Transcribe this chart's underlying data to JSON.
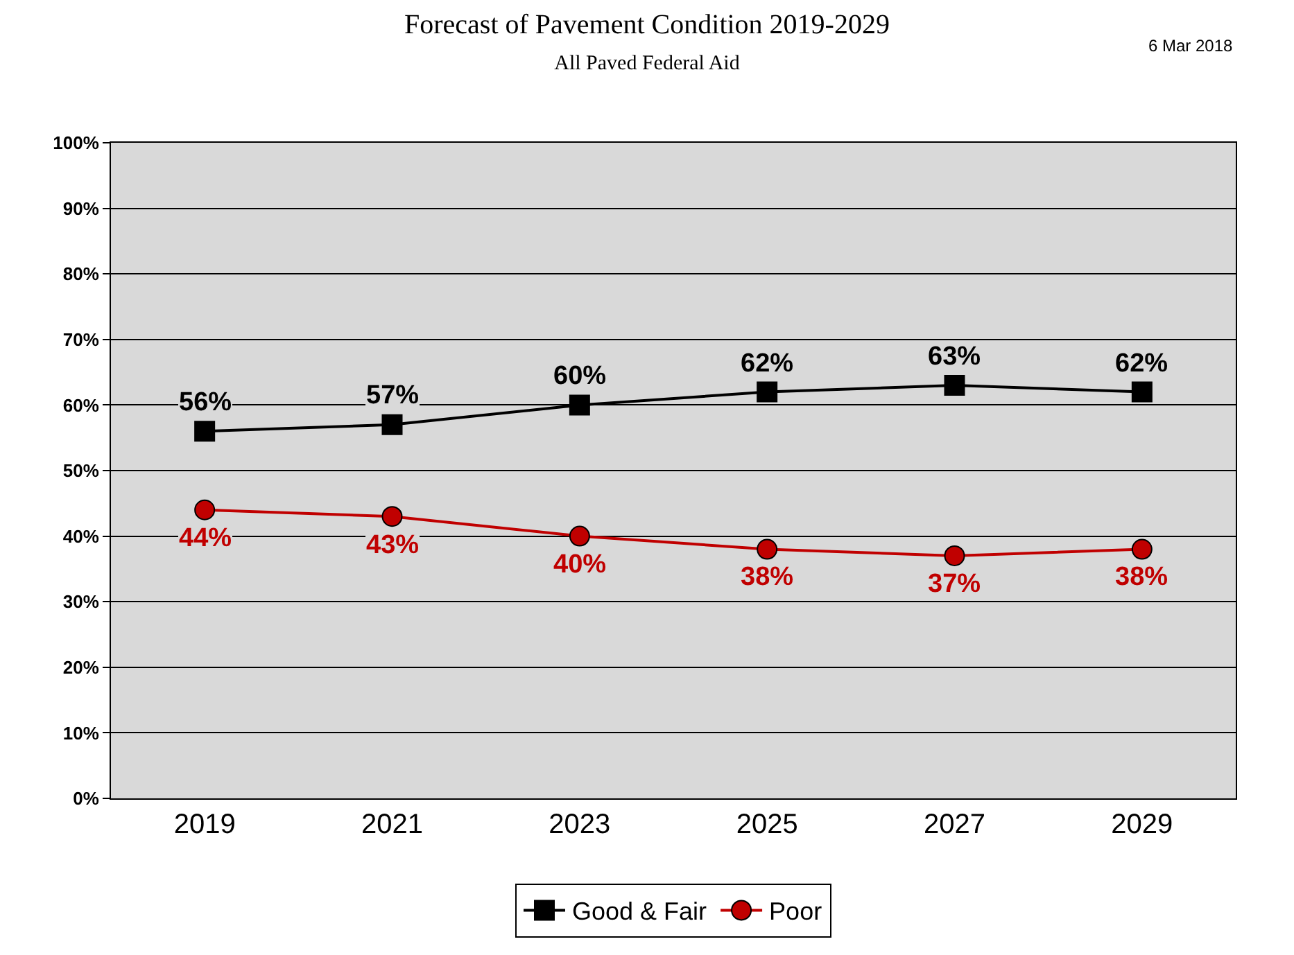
{
  "chart_data": {
    "type": "line",
    "title": "Forecast of Pavement Condition 2019-2029",
    "subtitle": "All Paved Federal Aid",
    "annotations": [
      "6 Mar 2018"
    ],
    "categories": [
      "2019",
      "2021",
      "2023",
      "2025",
      "2027",
      "2029"
    ],
    "series": [
      {
        "name": "Good & Fair",
        "color": "#000000",
        "marker": "square",
        "values": [
          56,
          57,
          60,
          62,
          63,
          62
        ],
        "value_labels": [
          "56%",
          "57%",
          "60%",
          "62%",
          "63%",
          "62%"
        ]
      },
      {
        "name": "Poor",
        "color": "#c00000",
        "marker": "circle",
        "values": [
          44,
          43,
          40,
          38,
          37,
          38
        ],
        "value_labels": [
          "44%",
          "43%",
          "40%",
          "38%",
          "37%",
          "38%"
        ]
      }
    ],
    "ylim": [
      0,
      100
    ],
    "yticks": [
      {
        "value": 0,
        "label": "0%"
      },
      {
        "value": 10,
        "label": "10%"
      },
      {
        "value": 20,
        "label": "20%"
      },
      {
        "value": 30,
        "label": "30%"
      },
      {
        "value": 40,
        "label": "40%"
      },
      {
        "value": 50,
        "label": "50%"
      },
      {
        "value": 60,
        "label": "60%"
      },
      {
        "value": 70,
        "label": "70%"
      },
      {
        "value": 80,
        "label": "80%"
      },
      {
        "value": 90,
        "label": "90%"
      },
      {
        "value": 100,
        "label": "100%"
      }
    ],
    "grid": "y",
    "legend": "bottom",
    "line_style": "solid"
  }
}
